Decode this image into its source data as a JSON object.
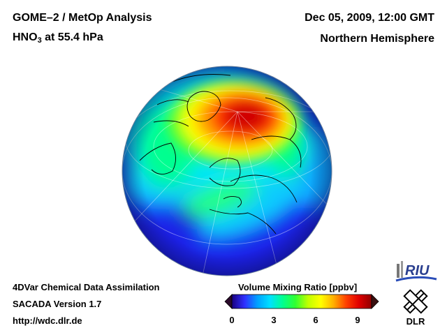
{
  "header": {
    "title_line1": "GOME–2 / MetOp Analysis",
    "species": "HNO",
    "species_subscript": "3",
    "level": " at 55.4 hPa",
    "date": "Dec 05, 2009, 12:00 GMT",
    "region": "Northern Hemisphere"
  },
  "footer": {
    "line1": "4DVar Chemical Data Assimilation",
    "line2": "SACADA Version 1.7",
    "line3": "http://wdc.dlr.de"
  },
  "colorbar": {
    "title": "Volume Mixing Ratio [ppbv]",
    "min": 0,
    "max": 10,
    "ticks": [
      "0",
      "3",
      "6",
      "9"
    ],
    "tick_values": [
      0,
      3,
      6,
      9
    ],
    "colors": [
      "#1a0080",
      "#2f2fff",
      "#00a0ff",
      "#00e0ff",
      "#00ff90",
      "#30ff30",
      "#c0ff00",
      "#ffff00",
      "#ffb000",
      "#ff4000",
      "#e00000",
      "#900000"
    ],
    "under_color": "#2a0a2a",
    "over_color": "#3a1010"
  },
  "map": {
    "projection": "orthographic",
    "colormap": [
      "#1a0080",
      "#2f2fff",
      "#00a0ff",
      "#00e0ff",
      "#00ff90",
      "#30ff30",
      "#c0ff00",
      "#ffff00",
      "#ffb000",
      "#ff4000",
      "#e00000",
      "#900000"
    ]
  },
  "logos": {
    "riu": "RIU",
    "dlr": "DLR"
  }
}
